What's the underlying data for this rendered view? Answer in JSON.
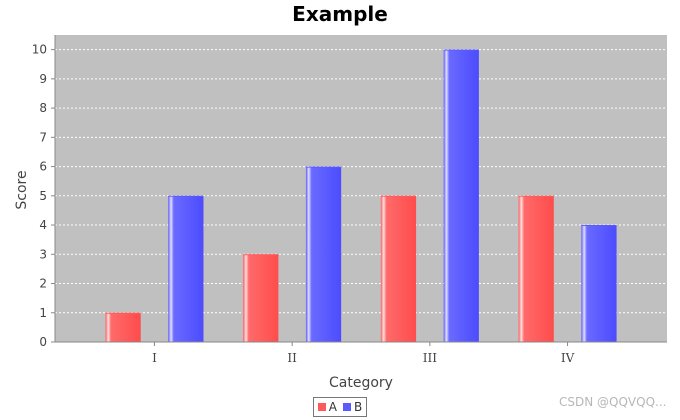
{
  "chart_data": {
    "type": "bar",
    "title": "Example",
    "xlabel": "Category",
    "ylabel": "Score",
    "categories": [
      "I",
      "II",
      "III",
      "IV"
    ],
    "series": [
      {
        "name": "A",
        "values": [
          1,
          3,
          5,
          5
        ],
        "color": "#ff5a5a"
      },
      {
        "name": "B",
        "values": [
          5,
          6,
          10,
          4
        ],
        "color": "#5a5aff"
      }
    ],
    "ylim": [
      0,
      10.5
    ],
    "yticks": [
      "0",
      "1",
      "2",
      "3",
      "4",
      "5",
      "6",
      "7",
      "8",
      "9",
      "10"
    ],
    "grid": true,
    "plot_background": "#c0c0c0",
    "legend_position": "bottom-center"
  },
  "watermark": "CSDN @QQVQQ..."
}
